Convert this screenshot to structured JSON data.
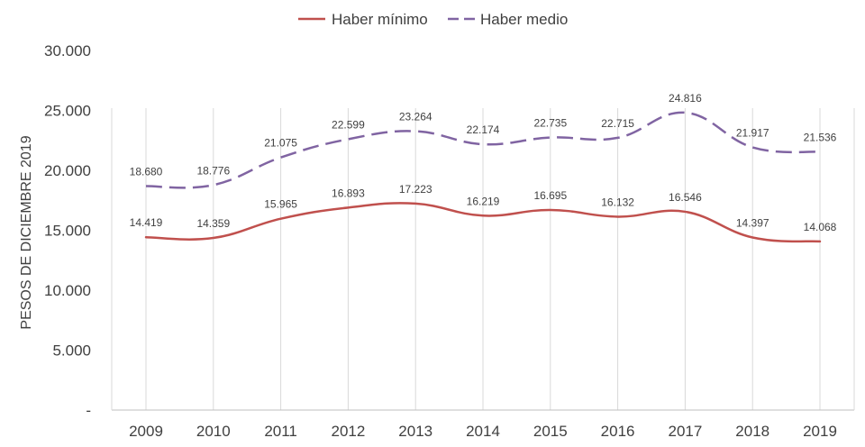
{
  "chart_data": {
    "type": "line",
    "categories": [
      "2009",
      "2010",
      "2011",
      "2012",
      "2013",
      "2014",
      "2015",
      "2016",
      "2017",
      "2018",
      "2019"
    ],
    "series": [
      {
        "name": "Haber mínimo",
        "values": [
          14419,
          14359,
          15965,
          16893,
          17223,
          16219,
          16695,
          16132,
          16546,
          14397,
          14068
        ],
        "labels": [
          "14.419",
          "14.359",
          "15.965",
          "16.893",
          "17.223",
          "16.219",
          "16.695",
          "16.132",
          "16.546",
          "14.397",
          "14.068"
        ],
        "color": "#c0504d",
        "dash": "solid"
      },
      {
        "name": "Haber medio",
        "values": [
          18680,
          18776,
          21075,
          22599,
          23264,
          22174,
          22735,
          22715,
          24816,
          21917,
          21536
        ],
        "labels": [
          "18.680",
          "18.776",
          "21.075",
          "22.599",
          "23.264",
          "22.174",
          "22.735",
          "22.715",
          "24.816",
          "21.917",
          "21.536"
        ],
        "color": "#8064a2",
        "dash": "dashed"
      }
    ],
    "ylabel": "PESOS DE DICIEMBRE 2019",
    "xlabel": "",
    "title": "",
    "ylim": [
      0,
      30000
    ],
    "yticks": [
      0,
      5000,
      10000,
      15000,
      20000,
      25000,
      30000
    ],
    "ytick_labels": [
      "-",
      "5.000",
      "10.000",
      "15.000",
      "20.000",
      "25.000",
      "30.000"
    ],
    "legend_position": "top-center",
    "grid": "vertical-lines-at-categories"
  },
  "colors": {
    "axis": "#bfbfbf",
    "gridline": "#d9d9d9",
    "text": "#404040"
  }
}
